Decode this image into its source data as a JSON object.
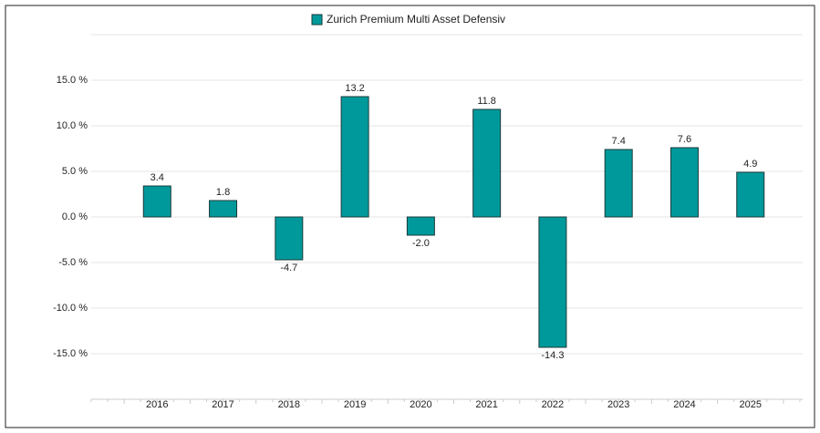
{
  "chart_data": {
    "type": "bar",
    "legend": "Zurich Premium Multi Asset Defensiv",
    "categories": [
      "2016",
      "2017",
      "2018",
      "2019",
      "2020",
      "2021",
      "2022",
      "2023",
      "2024",
      "2025"
    ],
    "values": [
      3.4,
      1.8,
      -4.7,
      13.2,
      -2.0,
      11.8,
      -14.3,
      7.4,
      7.6,
      4.9
    ],
    "value_labels": [
      "3.4",
      "1.8",
      "-4.7",
      "13.2",
      "-2.0",
      "11.8",
      "-14.3",
      "7.4",
      "7.6",
      "4.9"
    ],
    "color": "#00999b",
    "ylim": [
      -20,
      20
    ],
    "yticks": [
      {
        "value": -15,
        "label": "-15.0 %"
      },
      {
        "value": -10,
        "label": "-10.0 %"
      },
      {
        "value": -5,
        "label": "-5.0 %"
      },
      {
        "value": 0,
        "label": "0.0 %"
      },
      {
        "value": 5,
        "label": "5.0 %"
      },
      {
        "value": 10,
        "label": "10.0 %"
      },
      {
        "value": 15,
        "label": "15.0 %"
      }
    ],
    "grid": true
  }
}
